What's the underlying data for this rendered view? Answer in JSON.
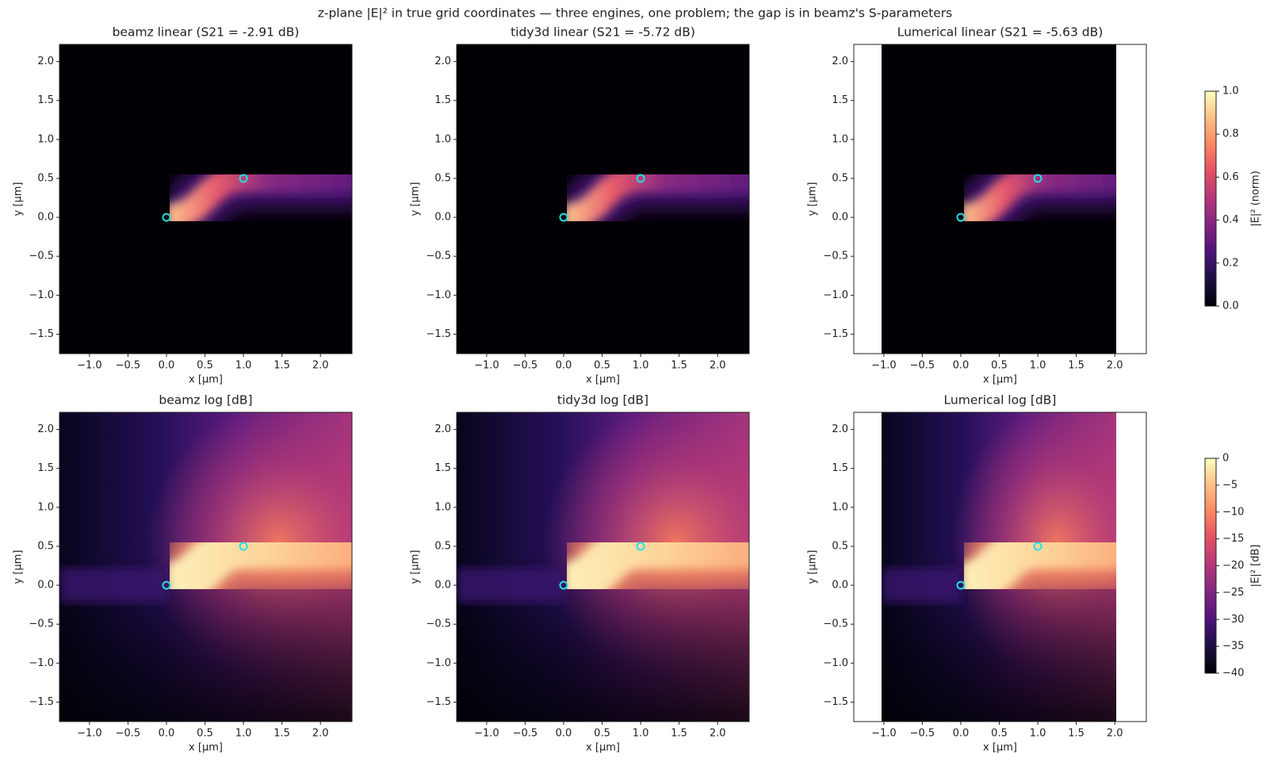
{
  "title": "z-plane |E|² in true grid coordinates — three engines, one problem; the gap is in beamz's S-parameters",
  "chart_data": [
    {
      "type": "heatmap",
      "style": "linear",
      "title": "beamz  linear   (S21 = -2.91 dB)",
      "x_label": "x [µm]",
      "y_label": "y [µm]",
      "xlim": [
        -1.39,
        2.41
      ],
      "ylim": [
        -1.75,
        2.22
      ],
      "image_xlim": [
        -1.39,
        2.41
      ],
      "colormap": "magma",
      "xticks": [
        {
          "value": -1,
          "label": "−1.0"
        },
        {
          "value": -0.5,
          "label": "−0.5"
        },
        {
          "value": 0,
          "label": "0.0"
        },
        0.5,
        {
          "value": 1,
          "label": "1.0"
        },
        1.5,
        {
          "value": 2,
          "label": "2.0"
        }
      ],
      "yticks": [
        {
          "value": -1.5,
          "label": "−1.5"
        },
        {
          "value": -1,
          "label": "−1.0"
        },
        {
          "value": -0.5,
          "label": "−0.5"
        },
        {
          "value": 0,
          "label": "0.0"
        },
        0.5,
        {
          "value": 1,
          "label": "1.0"
        },
        1.5,
        {
          "value": 2,
          "label": "2.0"
        }
      ],
      "markers": {
        "x": [
          0,
          1
        ],
        "y": [
          0,
          0.5
        ],
        "color": "#22e0e8"
      }
    },
    {
      "type": "heatmap",
      "style": "linear",
      "title": "tidy3d  linear   (S21 = -5.72 dB)",
      "x_label": "x [µm]",
      "y_label": "y [µm]",
      "xlim": [
        -1.39,
        2.41
      ],
      "ylim": [
        -1.75,
        2.22
      ],
      "image_xlim": [
        -1.39,
        2.41
      ],
      "colormap": "magma",
      "xticks": [
        {
          "value": -1,
          "label": "−1.0"
        },
        {
          "value": -0.5,
          "label": "−0.5"
        },
        {
          "value": 0,
          "label": "0.0"
        },
        0.5,
        {
          "value": 1,
          "label": "1.0"
        },
        1.5,
        {
          "value": 2,
          "label": "2.0"
        }
      ],
      "yticks": [
        {
          "value": -1.5,
          "label": "−1.5"
        },
        {
          "value": -1,
          "label": "−1.0"
        },
        {
          "value": -0.5,
          "label": "−0.5"
        },
        {
          "value": 0,
          "label": "0.0"
        },
        0.5,
        {
          "value": 1,
          "label": "1.0"
        },
        1.5,
        {
          "value": 2,
          "label": "2.0"
        }
      ],
      "markers": {
        "x": [
          0,
          1
        ],
        "y": [
          0,
          0.5
        ],
        "color": "#22e0e8"
      }
    },
    {
      "type": "heatmap",
      "style": "linear",
      "title": "Lumerical  linear   (S21 = -5.63 dB)",
      "x_label": "x [µm]",
      "y_label": "y [µm]",
      "xlim": [
        -1.39,
        2.41
      ],
      "ylim": [
        -1.75,
        2.22
      ],
      "image_xlim": [
        -1.03,
        2.02
      ],
      "colormap": "magma",
      "xticks": [
        {
          "value": -1,
          "label": "−1.0"
        },
        {
          "value": -0.5,
          "label": "−0.5"
        },
        {
          "value": 0,
          "label": "0.0"
        },
        0.5,
        {
          "value": 1,
          "label": "1.0"
        },
        1.5,
        {
          "value": 2,
          "label": "2.0"
        }
      ],
      "yticks": [
        {
          "value": -1.5,
          "label": "−1.5"
        },
        {
          "value": -1,
          "label": "−1.0"
        },
        {
          "value": -0.5,
          "label": "−0.5"
        },
        {
          "value": 0,
          "label": "0.0"
        },
        0.5,
        {
          "value": 1,
          "label": "1.0"
        },
        1.5,
        {
          "value": 2,
          "label": "2.0"
        }
      ],
      "markers": {
        "x": [
          0,
          1
        ],
        "y": [
          0,
          0.5
        ],
        "color": "#22e0e8"
      }
    },
    {
      "type": "heatmap",
      "style": "log",
      "title": "beamz  log [dB]",
      "x_label": "x [µm]",
      "y_label": "y [µm]",
      "xlim": [
        -1.39,
        2.41
      ],
      "ylim": [
        -1.75,
        2.22
      ],
      "image_xlim": [
        -1.39,
        2.41
      ],
      "colormap": "magma",
      "xticks": [
        {
          "value": -1,
          "label": "−1.0"
        },
        {
          "value": -0.5,
          "label": "−0.5"
        },
        {
          "value": 0,
          "label": "0.0"
        },
        0.5,
        {
          "value": 1,
          "label": "1.0"
        },
        1.5,
        {
          "value": 2,
          "label": "2.0"
        }
      ],
      "yticks": [
        {
          "value": -1.5,
          "label": "−1.5"
        },
        {
          "value": -1,
          "label": "−1.0"
        },
        {
          "value": -0.5,
          "label": "−0.5"
        },
        {
          "value": 0,
          "label": "0.0"
        },
        0.5,
        {
          "value": 1,
          "label": "1.0"
        },
        1.5,
        {
          "value": 2,
          "label": "2.0"
        }
      ],
      "markers": {
        "x": [
          0,
          1
        ],
        "y": [
          0,
          0.5
        ],
        "color": "#22e0e8"
      }
    },
    {
      "type": "heatmap",
      "style": "log",
      "title": "tidy3d  log [dB]",
      "x_label": "x [µm]",
      "y_label": "y [µm]",
      "xlim": [
        -1.39,
        2.41
      ],
      "ylim": [
        -1.75,
        2.22
      ],
      "image_xlim": [
        -1.39,
        2.41
      ],
      "colormap": "magma",
      "xticks": [
        {
          "value": -1,
          "label": "−1.0"
        },
        {
          "value": -0.5,
          "label": "−0.5"
        },
        {
          "value": 0,
          "label": "0.0"
        },
        0.5,
        {
          "value": 1,
          "label": "1.0"
        },
        1.5,
        {
          "value": 2,
          "label": "2.0"
        }
      ],
      "yticks": [
        {
          "value": -1.5,
          "label": "−1.5"
        },
        {
          "value": -1,
          "label": "−1.0"
        },
        {
          "value": -0.5,
          "label": "−0.5"
        },
        {
          "value": 0,
          "label": "0.0"
        },
        0.5,
        {
          "value": 1,
          "label": "1.0"
        },
        1.5,
        {
          "value": 2,
          "label": "2.0"
        }
      ],
      "markers": {
        "x": [
          0,
          1
        ],
        "y": [
          0,
          0.5
        ],
        "color": "#22e0e8"
      }
    },
    {
      "type": "heatmap",
      "style": "log",
      "title": "Lumerical  log [dB]",
      "x_label": "x [µm]",
      "y_label": "y [µm]",
      "xlim": [
        -1.39,
        2.41
      ],
      "ylim": [
        -1.75,
        2.22
      ],
      "image_xlim": [
        -1.03,
        2.02
      ],
      "colormap": "magma",
      "xticks": [
        {
          "value": -1,
          "label": "−1.0"
        },
        {
          "value": -0.5,
          "label": "−0.5"
        },
        {
          "value": 0,
          "label": "0.0"
        },
        0.5,
        {
          "value": 1,
          "label": "1.0"
        },
        1.5,
        {
          "value": 2,
          "label": "2.0"
        }
      ],
      "yticks": [
        {
          "value": -1.5,
          "label": "−1.5"
        },
        {
          "value": -1,
          "label": "−1.0"
        },
        {
          "value": -0.5,
          "label": "−0.5"
        },
        {
          "value": 0,
          "label": "0.0"
        },
        0.5,
        {
          "value": 1,
          "label": "1.0"
        },
        1.5,
        {
          "value": 2,
          "label": "2.0"
        }
      ],
      "markers": {
        "x": [
          0,
          1
        ],
        "y": [
          0,
          0.5
        ],
        "color": "#22e0e8"
      }
    },
    {
      "type": "colorbar",
      "label": "|E|² (norm)",
      "colormap": "magma",
      "ylim": [
        0,
        1
      ],
      "yticks": [
        {
          "value": 0,
          "label": "0.0"
        },
        0.2,
        0.4,
        0.6,
        0.8,
        {
          "value": 1,
          "label": "1.0"
        }
      ]
    },
    {
      "type": "colorbar",
      "label": "|E|² [dB]",
      "colormap": "magma",
      "ylim": [
        -40,
        0
      ],
      "yticks": [
        {
          "value": -40,
          "label": "−40"
        },
        {
          "value": -35,
          "label": "−35"
        },
        {
          "value": -30,
          "label": "−30"
        },
        {
          "value": -25,
          "label": "−25"
        },
        {
          "value": -20,
          "label": "−20"
        },
        {
          "value": -15,
          "label": "−15"
        },
        {
          "value": -10,
          "label": "−10"
        },
        {
          "value": -5,
          "label": "−5"
        },
        0
      ]
    }
  ]
}
